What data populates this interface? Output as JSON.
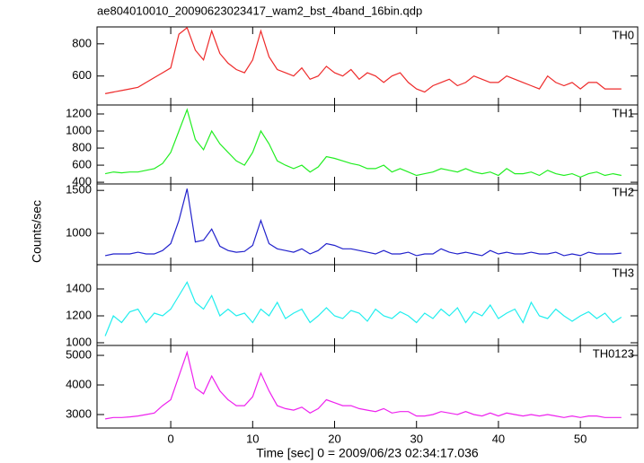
{
  "chart_data": {
    "type": "line",
    "title": "ae804010010_20090623023417_wam2_bst_4band_16bin.qdp",
    "x_label": "Time [sec] 0 = 2009/06/23 02:34:17.036",
    "y_label": "Counts/sec",
    "xlim": [
      -9,
      57
    ],
    "xticks": [
      0,
      10,
      20,
      30,
      40,
      50
    ],
    "x": [
      -8,
      -7,
      -6,
      -5,
      -4,
      -3,
      -2,
      -1,
      0,
      1,
      2,
      3,
      4,
      5,
      6,
      7,
      8,
      9,
      10,
      11,
      12,
      13,
      14,
      15,
      16,
      17,
      18,
      19,
      20,
      21,
      22,
      23,
      24,
      25,
      26,
      27,
      28,
      29,
      30,
      31,
      32,
      33,
      34,
      35,
      36,
      37,
      38,
      39,
      40,
      41,
      42,
      43,
      44,
      45,
      46,
      47,
      48,
      49,
      50,
      51,
      52,
      53,
      54,
      55
    ],
    "panels": [
      {
        "name": "TH0",
        "color": "#ee2a2a",
        "ylim": [
          420,
          905
        ],
        "yticks": [
          600,
          800
        ],
        "values": [
          490,
          500,
          510,
          520,
          530,
          560,
          590,
          620,
          650,
          860,
          900,
          760,
          700,
          880,
          740,
          680,
          640,
          620,
          700,
          880,
          720,
          640,
          620,
          600,
          650,
          580,
          600,
          660,
          620,
          600,
          640,
          580,
          620,
          600,
          560,
          600,
          620,
          560,
          520,
          500,
          540,
          560,
          580,
          540,
          560,
          600,
          580,
          560,
          560,
          600,
          580,
          560,
          540,
          520,
          600,
          560,
          540,
          560,
          520,
          560,
          560,
          520,
          520,
          520
        ]
      },
      {
        "name": "TH1",
        "color": "#22ee22",
        "ylim": [
          380,
          1305
        ],
        "yticks": [
          400,
          600,
          800,
          1000,
          1200
        ],
        "values": [
          500,
          520,
          510,
          520,
          520,
          540,
          560,
          620,
          750,
          1000,
          1250,
          900,
          780,
          1000,
          850,
          750,
          650,
          600,
          750,
          1000,
          850,
          650,
          600,
          560,
          600,
          520,
          580,
          700,
          680,
          650,
          620,
          600,
          560,
          560,
          600,
          520,
          560,
          520,
          480,
          500,
          520,
          560,
          540,
          520,
          560,
          520,
          500,
          520,
          480,
          560,
          500,
          500,
          520,
          480,
          540,
          500,
          480,
          500,
          460,
          500,
          520,
          480,
          500,
          480
        ]
      },
      {
        "name": "TH2",
        "color": "#2222cc",
        "ylim": [
          635,
          1575
        ],
        "yticks": [
          1000,
          1500
        ],
        "values": [
          740,
          760,
          760,
          760,
          780,
          760,
          760,
          800,
          880,
          1150,
          1520,
          900,
          920,
          1050,
          850,
          800,
          780,
          790,
          860,
          1150,
          880,
          820,
          800,
          780,
          820,
          760,
          800,
          880,
          860,
          820,
          820,
          800,
          780,
          760,
          800,
          760,
          760,
          780,
          740,
          760,
          760,
          820,
          780,
          760,
          780,
          760,
          740,
          800,
          760,
          780,
          760,
          760,
          780,
          760,
          760,
          780,
          740,
          760,
          740,
          780,
          760,
          760,
          760,
          770
        ]
      },
      {
        "name": "TH3",
        "color": "#22eeee",
        "ylim": [
          980,
          1580
        ],
        "yticks": [
          1000,
          1200,
          1400
        ],
        "values": [
          1050,
          1200,
          1150,
          1230,
          1250,
          1150,
          1220,
          1200,
          1250,
          1350,
          1450,
          1300,
          1250,
          1350,
          1200,
          1250,
          1200,
          1220,
          1150,
          1250,
          1200,
          1300,
          1180,
          1220,
          1250,
          1150,
          1200,
          1260,
          1200,
          1180,
          1240,
          1220,
          1160,
          1250,
          1200,
          1180,
          1230,
          1200,
          1150,
          1220,
          1180,
          1250,
          1200,
          1260,
          1150,
          1230,
          1200,
          1280,
          1180,
          1220,
          1250,
          1150,
          1300,
          1200,
          1180,
          1250,
          1200,
          1160,
          1200,
          1230,
          1180,
          1220,
          1150,
          1190
        ]
      },
      {
        "name": "TH0123",
        "color": "#ee22ee",
        "ylim": [
          2545,
          5335
        ],
        "yticks": [
          3000,
          4000,
          5000
        ],
        "values": [
          2850,
          2900,
          2900,
          2920,
          2950,
          3000,
          3050,
          3300,
          3500,
          4300,
          5100,
          3900,
          3700,
          4300,
          3800,
          3500,
          3300,
          3300,
          3600,
          4400,
          3800,
          3300,
          3200,
          3150,
          3250,
          3050,
          3200,
          3500,
          3400,
          3300,
          3300,
          3200,
          3150,
          3100,
          3200,
          3050,
          3100,
          3100,
          2950,
          2950,
          3000,
          3100,
          3050,
          3000,
          3100,
          3000,
          2950,
          3050,
          2950,
          3050,
          3000,
          2950,
          3000,
          2950,
          3000,
          2950,
          2900,
          2950,
          2900,
          2950,
          2950,
          2900,
          2900,
          2900
        ]
      }
    ]
  }
}
